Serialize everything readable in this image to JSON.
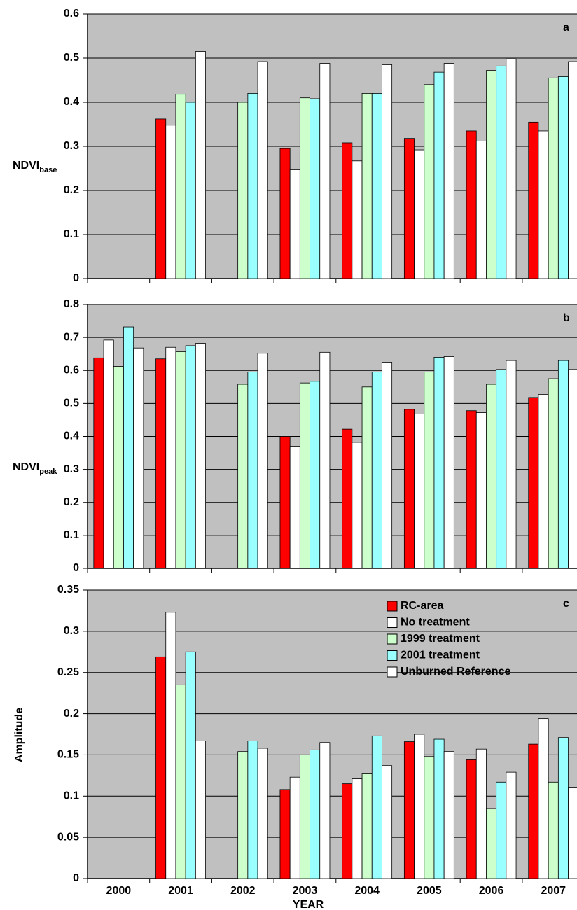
{
  "chart_data": [
    {
      "type": "bar",
      "panel_label": "a",
      "ylabel": "NDVI",
      "ylabel_subscript": "base",
      "categories": [
        null,
        null,
        null,
        null,
        null,
        null,
        null,
        null
      ],
      "ylim": [
        0,
        0.6
      ],
      "yticks": [
        0,
        0.1,
        0.2,
        0.3,
        0.4,
        0.5,
        0.6
      ],
      "grid": true,
      "series": [
        {
          "color": "#ff0000",
          "values": [
            null,
            0.362,
            null,
            0.295,
            0.308,
            0.318,
            0.335,
            0.355
          ]
        },
        {
          "color": "#ffffff",
          "values": [
            null,
            0.348,
            null,
            0.247,
            0.267,
            0.292,
            0.312,
            0.335
          ]
        },
        {
          "color": "#ccffcc",
          "values": [
            null,
            0.418,
            0.4,
            0.41,
            0.42,
            0.44,
            0.472,
            0.455
          ]
        },
        {
          "color": "#99ffff",
          "values": [
            null,
            0.4,
            0.42,
            0.408,
            0.42,
            0.468,
            0.482,
            0.458
          ]
        },
        {
          "color": "#ffffff",
          "values": [
            null,
            0.515,
            0.492,
            0.488,
            0.485,
            0.488,
            0.498,
            0.492
          ]
        }
      ]
    },
    {
      "type": "bar",
      "panel_label": "b",
      "ylabel": "NDVI",
      "ylabel_subscript": "peak",
      "categories": [
        null,
        null,
        null,
        null,
        null,
        null,
        null,
        null
      ],
      "ylim": [
        0,
        0.8
      ],
      "yticks": [
        0,
        0.1,
        0.2,
        0.3,
        0.4,
        0.5,
        0.6,
        0.7,
        0.8
      ],
      "grid": true,
      "series": [
        {
          "color": "#ff0000",
          "values": [
            0.638,
            0.635,
            null,
            0.4,
            0.422,
            0.482,
            0.478,
            0.518
          ]
        },
        {
          "color": "#ffffff",
          "values": [
            0.692,
            0.67,
            null,
            0.37,
            0.382,
            0.468,
            0.472,
            0.527
          ]
        },
        {
          "color": "#ccffcc",
          "values": [
            0.612,
            0.657,
            0.558,
            0.562,
            0.55,
            0.595,
            0.558,
            0.575
          ]
        },
        {
          "color": "#99ffff",
          "values": [
            0.732,
            0.675,
            0.595,
            0.567,
            0.595,
            0.64,
            0.603,
            0.63
          ]
        },
        {
          "color": "#ffffff",
          "values": [
            0.668,
            0.682,
            0.652,
            0.655,
            0.625,
            0.642,
            0.63,
            0.603
          ]
        }
      ]
    },
    {
      "type": "bar",
      "panel_label": "c",
      "ylabel": "Amplitude",
      "x_label": "YEAR",
      "categories": [
        "2000",
        "2001",
        "2002",
        "2003",
        "2004",
        "2005",
        "2006",
        "2007"
      ],
      "ylim": [
        0,
        0.35
      ],
      "yticks": [
        0,
        0.05,
        0.1,
        0.15,
        0.2,
        0.25,
        0.3,
        0.35
      ],
      "grid": true,
      "legend": "upper right",
      "series": [
        {
          "name": "RC-area",
          "color": "#ff0000",
          "values": [
            null,
            0.269,
            null,
            0.108,
            0.115,
            0.166,
            0.144,
            0.163
          ]
        },
        {
          "name": "No treatment",
          "color": "#ffffff",
          "values": [
            null,
            0.323,
            null,
            0.123,
            0.121,
            0.175,
            0.157,
            0.194
          ]
        },
        {
          "name": "1999 treatment",
          "color": "#ccffcc",
          "values": [
            null,
            0.235,
            0.154,
            0.15,
            0.127,
            0.148,
            0.085,
            0.117
          ]
        },
        {
          "name": "2001 treatment",
          "color": "#99ffff",
          "values": [
            null,
            0.275,
            0.167,
            0.156,
            0.173,
            0.169,
            0.117,
            0.171
          ]
        },
        {
          "name": "Unburned Reference",
          "color": "#ffffff",
          "values": [
            null,
            0.167,
            0.158,
            0.165,
            0.137,
            0.154,
            0.129,
            0.11
          ]
        }
      ]
    }
  ]
}
